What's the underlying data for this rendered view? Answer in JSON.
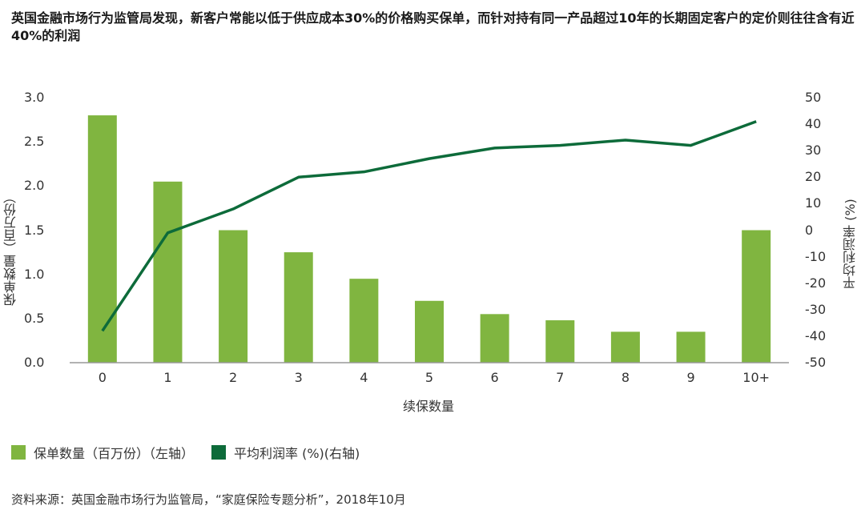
{
  "title": "英国金融市场行为监管局发现，新客户常能以低于供应成本30%的价格购买保单，而针对持有同一产品超过10年的长期固定客户的定价则往往含有近40%的利润",
  "colors": {
    "bar": "#80b540",
    "line": "#0d6b3a",
    "axis": "#999999"
  },
  "legend": {
    "bar_label": "保单数量（百万份）（左轴）",
    "line_label": "平均利润率 (%)(右轴)"
  },
  "source": "资料来源：英国金融市场行为监管局，“家庭保险专题分析”，2018年10月",
  "chart_data": {
    "type": "bar+line",
    "title": "英国金融市场行为监管局发现，新客户常能以低于供应成本30%的价格购买保单，而针对持有同一产品超过10年的长期固定客户的定价则往往含有近40%的利润",
    "xlabel": "续保数量",
    "ylabel_left": "保单数量（百万份）",
    "ylabel_right": "平均利润率 (%)",
    "categories": [
      "0",
      "1",
      "2",
      "3",
      "4",
      "5",
      "6",
      "7",
      "8",
      "9",
      "10+"
    ],
    "ylim_left": [
      0,
      3.0
    ],
    "yticks_left": [
      "0.0",
      "0.5",
      "1.0",
      "1.5",
      "2.0",
      "2.5",
      "3.0"
    ],
    "ylim_right": [
      -50,
      50
    ],
    "yticks_right": [
      "-50",
      "-40",
      "-30",
      "-20",
      "-10",
      "0",
      "10",
      "20",
      "30",
      "40",
      "50"
    ],
    "series": [
      {
        "name": "保单数量（百万份）（左轴）",
        "type": "bar",
        "axis": "left",
        "values": [
          2.8,
          2.05,
          1.5,
          1.25,
          0.95,
          0.7,
          0.55,
          0.48,
          0.35,
          0.35,
          1.5
        ]
      },
      {
        "name": "平均利润率 (%)(右轴)",
        "type": "line",
        "axis": "right",
        "values": [
          -38,
          -1,
          8,
          20,
          22,
          27,
          31,
          32,
          34,
          32,
          41
        ]
      }
    ],
    "grid": false,
    "legend_position": "bottom-left"
  }
}
